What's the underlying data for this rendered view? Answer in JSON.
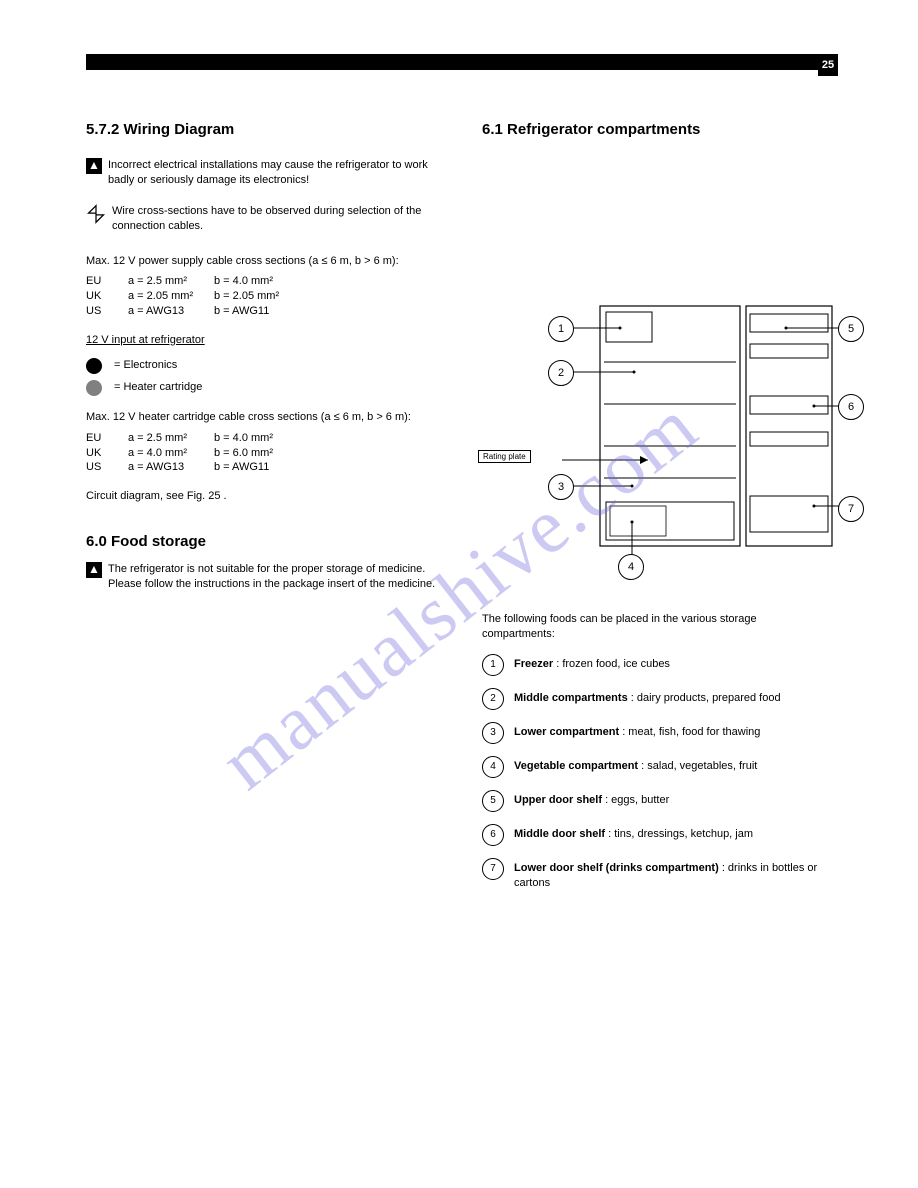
{
  "page_number": "25",
  "watermark_text": "manualshive.com",
  "watermark_color": "#6e64dc59",
  "left": {
    "h_wiring": "5.7.2 Wiring Diagram",
    "warn_text": "Incorrect electrical installations may cause the refrigerator to work badly or seriously damage its electronics!",
    "drop_text": "Wire cross-sections have to be observed during selection of the connection cables.",
    "max12v": "Max. 12 V power supply cable cross sections (a ≤ 6 m, b > 6 m):",
    "dot_black_label": "= Electronics",
    "dot_gray_label": "= Heater cartridge",
    "wire_rows": [
      {
        "region": "EU",
        "a": "2.5 mm²",
        "b": "4.0 mm²"
      },
      {
        "region": "UK",
        "a": "2.05 mm²",
        "b": "2.05 mm²"
      },
      {
        "region": "US",
        "a": "AWG13",
        "b": "AWG11"
      }
    ],
    "heater12v": "Max. 12 V heater cartridge cable cross sections (a ≤ 6 m, b > 6 m):",
    "heater_rows": [
      {
        "region": "EU",
        "a": "2.5 mm²",
        "b": "4.0 mm²"
      },
      {
        "region": "UK",
        "a": "4.0 mm²",
        "b": "6.0 mm²"
      },
      {
        "region": "US",
        "a": "AWG13",
        "b": "AWG11"
      }
    ],
    "diagram_ref": "Circuit diagram, see Fig. 25 .",
    "h_food": "6.0 Food storage",
    "warn_food": "The refrigerator is not suitable for the proper storage of medicine. Please follow the instructions in the package insert of the medicine."
  },
  "right": {
    "h_compartments": "6.1 Refrigerator compartments",
    "rating_plate_label": "Rating plate",
    "legend_title": "The following foods can be placed in the various storage compartments:",
    "callouts": {
      "c1": "1",
      "c2": "2",
      "c3": "3",
      "c4": "4",
      "c5": "5",
      "c6": "6",
      "c7": "7"
    },
    "legend": [
      {
        "n": "1",
        "t": "Freezer : frozen food, ice cubes"
      },
      {
        "n": "2",
        "t": "Middle compartments : dairy products, prepared food"
      },
      {
        "n": "3",
        "t": "Lower compartment : meat, fish, food for thawing"
      },
      {
        "n": "4",
        "t": "Vegetable compartment : salad, vegetables, fruit"
      },
      {
        "n": "5",
        "t": "Upper door shelf : eggs, butter"
      },
      {
        "n": "6",
        "t": "Middle door shelf : tins, dressings, ketchup, jam"
      },
      {
        "n": "7",
        "t": "Lower door shelf (drinks compartment) : drinks in bottles or cartons"
      }
    ]
  }
}
